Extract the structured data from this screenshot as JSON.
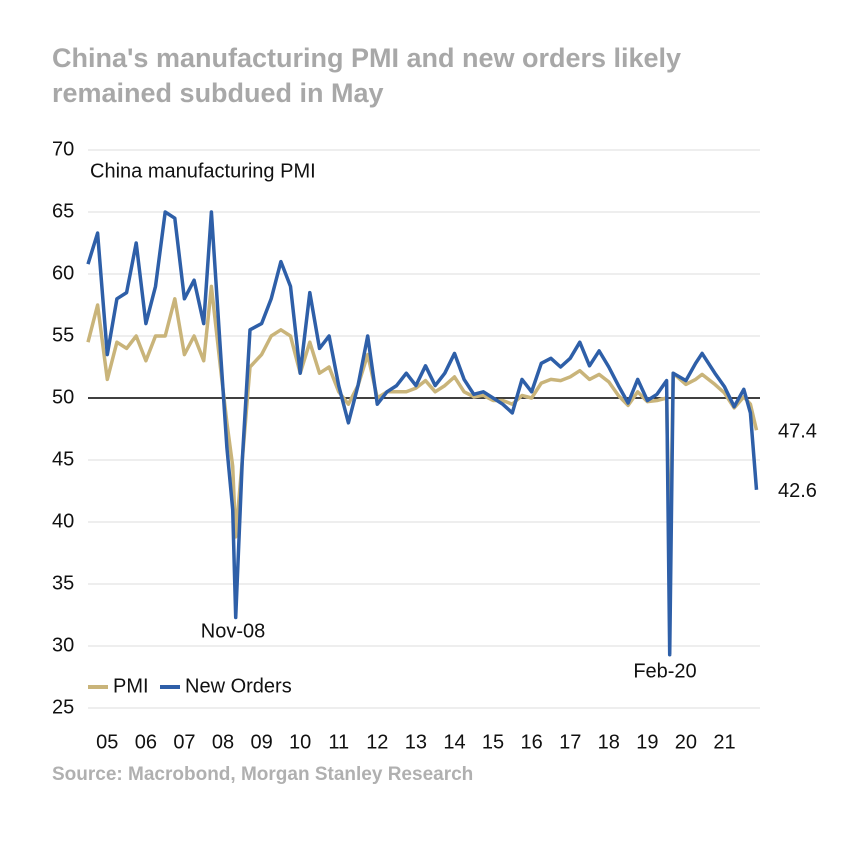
{
  "chart_data": {
    "type": "line",
    "title": [
      "China's manufacturing PMI and new orders likely",
      "remained subdued in May"
    ],
    "ylabel": "China manufacturing PMI",
    "source": "Source: Macrobond, Morgan Stanley Research",
    "x": [
      5.0,
      5.25,
      5.5,
      5.75,
      6.0,
      6.25,
      6.5,
      6.75,
      7.0,
      7.25,
      7.5,
      7.75,
      8.0,
      8.2,
      8.45,
      8.6,
      8.75,
      8.83,
      9.0,
      9.2,
      9.5,
      9.75,
      10.0,
      10.25,
      10.5,
      10.75,
      11.0,
      11.25,
      11.5,
      11.75,
      12.0,
      12.25,
      12.5,
      12.75,
      13.0,
      13.25,
      13.5,
      13.75,
      14.0,
      14.25,
      14.5,
      14.75,
      15.0,
      15.25,
      15.5,
      15.75,
      16.0,
      16.25,
      16.5,
      16.75,
      17.0,
      17.25,
      17.5,
      17.75,
      18.0,
      18.25,
      18.5,
      18.75,
      19.0,
      19.25,
      19.5,
      19.75,
      20.0,
      20.08,
      20.17,
      20.5,
      20.75,
      20.92,
      21.25,
      21.5,
      21.75,
      22.0,
      22.17,
      22.33
    ],
    "series": [
      {
        "name": "PMI",
        "color": "#c9b47a",
        "values": [
          54.5,
          57.5,
          51.5,
          54.5,
          54,
          55,
          53,
          55,
          55,
          58,
          53.5,
          55,
          53,
          59,
          52,
          48,
          44.5,
          38.8,
          45,
          52.5,
          53.5,
          55,
          55.5,
          55,
          52,
          54.5,
          52,
          52.5,
          50.5,
          49.5,
          51,
          53.5,
          50,
          50.5,
          50.5,
          50.5,
          50.8,
          51.4,
          50.5,
          51,
          51.7,
          50.5,
          50.1,
          50.2,
          49.8,
          49.8,
          49.5,
          50.2,
          50,
          51.2,
          51.5,
          51.4,
          51.7,
          52.2,
          51.5,
          51.9,
          51.3,
          50.2,
          49.4,
          50.5,
          49.7,
          49.8,
          50,
          35.7,
          52,
          51.1,
          51.5,
          51.9,
          51.1,
          50.4,
          49.2,
          50.1,
          49.5,
          47.4
        ]
      },
      {
        "name": "New Orders",
        "color": "#2e5fa8",
        "values": [
          60.8,
          63.3,
          53.5,
          58,
          58.5,
          62.5,
          56,
          59,
          65,
          64.5,
          58,
          59.5,
          56,
          65,
          53,
          46,
          41,
          32.3,
          45,
          55.5,
          56,
          58,
          61,
          59,
          52,
          58.5,
          54,
          55,
          51,
          48,
          51,
          55,
          49.5,
          50.5,
          51,
          52,
          51,
          52.6,
          51,
          52,
          53.6,
          51.5,
          50.3,
          50.5,
          50,
          49.5,
          48.8,
          51.5,
          50.5,
          52.8,
          53.2,
          52.5,
          53.2,
          54.5,
          52.6,
          53.8,
          52.5,
          51,
          49.6,
          51.5,
          49.8,
          50.3,
          51.4,
          29.3,
          52,
          51.4,
          52.8,
          53.6,
          52,
          50.9,
          49.3,
          50.7,
          48.8,
          42.6
        ]
      }
    ],
    "annotations": [
      "Nov-08",
      "Feb-20"
    ],
    "reference_line": 50,
    "xlim": [
      5,
      22.42
    ],
    "xticks": [
      {
        "value": 5.5,
        "label": "05"
      },
      {
        "value": 6.5,
        "label": "06"
      },
      {
        "value": 7.5,
        "label": "07"
      },
      {
        "value": 8.5,
        "label": "08"
      },
      {
        "value": 9.5,
        "label": "09"
      },
      {
        "value": 10.5,
        "label": "10"
      },
      {
        "value": 11.5,
        "label": "11"
      },
      {
        "value": 12.5,
        "label": "12"
      },
      {
        "value": 13.5,
        "label": "13"
      },
      {
        "value": 14.5,
        "label": "14"
      },
      {
        "value": 15.5,
        "label": "15"
      },
      {
        "value": 16.5,
        "label": "16"
      },
      {
        "value": 17.5,
        "label": "17"
      },
      {
        "value": 18.5,
        "label": "18"
      },
      {
        "value": 19.5,
        "label": "19"
      },
      {
        "value": 20.5,
        "label": "20"
      },
      {
        "value": 21.5,
        "label": "21"
      }
    ],
    "ylim": [
      25,
      70
    ],
    "yticks": [
      25,
      30,
      35,
      40,
      45,
      50,
      55,
      60,
      65,
      70
    ],
    "grid": true,
    "legend": "bottom-left"
  }
}
